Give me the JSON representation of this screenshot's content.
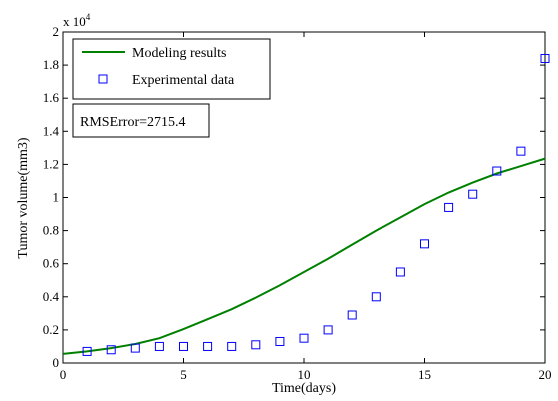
{
  "chart_data": {
    "type": "line",
    "title": "",
    "xlabel": "Time(days)",
    "ylabel": "Tumor volume(mm3)",
    "xlim": [
      0,
      20
    ],
    "ylim": [
      0,
      20000
    ],
    "xticks": [
      0,
      5,
      10,
      15,
      20
    ],
    "yticks": [
      0,
      2000,
      4000,
      6000,
      8000,
      10000,
      12000,
      14000,
      16000,
      18000,
      20000
    ],
    "ytick_labels": [
      "0",
      "0.2",
      "0.4",
      "0.6",
      "0.8",
      "1",
      "1.2",
      "1.4",
      "1.6",
      "1.8",
      "2"
    ],
    "y_exponent_base": "x 10",
    "y_exponent_power": "4",
    "grid": false,
    "legend_position": "top-left",
    "series": [
      {
        "name": "Modeling results",
        "style": "line",
        "color": "#008000",
        "x": [
          0,
          1,
          2,
          3,
          4,
          5,
          6,
          7,
          8,
          9,
          10,
          11,
          12,
          13,
          14,
          15,
          16,
          17,
          18,
          19,
          20
        ],
        "y": [
          550,
          700,
          900,
          1150,
          1500,
          2050,
          2650,
          3250,
          3950,
          4700,
          5500,
          6300,
          7150,
          8000,
          8800,
          9600,
          10300,
          10900,
          11450,
          11900,
          12350
        ]
      },
      {
        "name": "Experimental data",
        "style": "marker",
        "marker": "square",
        "color": "#0000ff",
        "x": [
          1,
          2,
          3,
          4,
          5,
          6,
          7,
          8,
          9,
          10,
          11,
          12,
          13,
          14,
          15,
          16,
          17,
          18,
          19,
          20
        ],
        "y": [
          700,
          800,
          900,
          1000,
          1000,
          1000,
          1000,
          1100,
          1300,
          1500,
          2000,
          2900,
          4000,
          5500,
          7200,
          9400,
          10200,
          11600,
          12800,
          18400
        ]
      }
    ],
    "annotation": "RMSError=2715.4"
  }
}
